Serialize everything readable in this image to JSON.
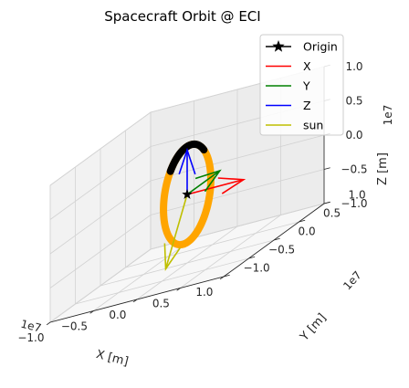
{
  "chart_data": {
    "type": "line",
    "title": "Spacecraft Orbit @ ECI",
    "xlabel": "X [m]",
    "ylabel": "Y [m]",
    "zlabel": "Z [m]",
    "xlim": [
      -1.0,
      1.0
    ],
    "ylim": [
      -1.0,
      1.0
    ],
    "zlim": [
      -1.0,
      1.0
    ],
    "scale_text": "1e7",
    "x_ticks": [
      "−1.0",
      "−0.5",
      "0.0",
      "0.5",
      "1.0"
    ],
    "y_ticks": [
      "−1.0",
      "−0.5",
      "0.0",
      "0.5",
      "1.0"
    ],
    "z_ticks": [
      "−1.0",
      "−0.5",
      "0.0",
      "0.5",
      "1.0"
    ],
    "grid": true,
    "legend_position": "top-right",
    "series": [
      {
        "name": "Origin",
        "kind": "marker",
        "color": "#000000",
        "point": [
          0,
          0,
          0
        ]
      },
      {
        "name": "X",
        "kind": "arrow",
        "color": "#ff0000",
        "start": [
          0,
          0,
          0
        ],
        "end": [
          0.65,
          0,
          0
        ]
      },
      {
        "name": "Y",
        "kind": "arrow",
        "color": "#008000",
        "start": [
          0,
          0,
          0
        ],
        "end": [
          0,
          0.65,
          0
        ]
      },
      {
        "name": "Z",
        "kind": "arrow",
        "color": "#0000ff",
        "start": [
          0,
          0,
          0
        ],
        "end": [
          0,
          0,
          0.65
        ]
      },
      {
        "name": "sun",
        "kind": "arrow",
        "color": "#bfbf00",
        "start": [
          0,
          0,
          0
        ],
        "end": [
          0.1,
          -0.6,
          -0.8
        ]
      }
    ],
    "orbit": {
      "color": "#ffa500",
      "hidden_color": "#000000",
      "radius": 0.7
    }
  }
}
